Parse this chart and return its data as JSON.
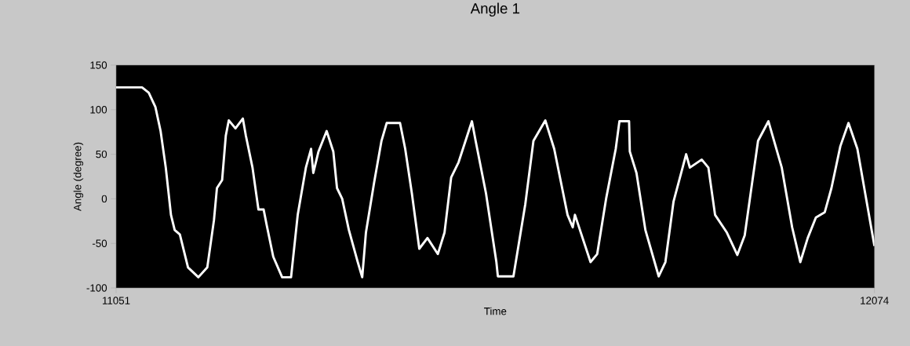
{
  "chart_data": {
    "type": "line",
    "title": "Angle 1",
    "xlabel": "Time",
    "ylabel": "Angle (degree)",
    "xlim": [
      11051,
      12074
    ],
    "xticks": [
      11051,
      12074
    ],
    "ylim": [
      -100,
      150
    ],
    "yticks": [
      -100,
      -50,
      0,
      50,
      100,
      150
    ],
    "grid": false,
    "marker": "none",
    "line_style": "solid",
    "series": [
      {
        "color": "#ffffff",
        "x": [
          11051,
          11086,
          11095,
          11104,
          11111,
          11118,
          11125,
          11130,
          11137,
          11148,
          11162,
          11174,
          11183,
          11187,
          11194,
          11199,
          11203,
          11212,
          11222,
          11226,
          11235,
          11243,
          11250,
          11254,
          11263,
          11275,
          11287,
          11296,
          11307,
          11314,
          11317,
          11324,
          11335,
          11344,
          11349,
          11356,
          11365,
          11377,
          11383,
          11388,
          11399,
          11409,
          11416,
          11434,
          11441,
          11450,
          11460,
          11471,
          11485,
          11494,
          11503,
          11513,
          11531,
          11536,
          11550,
          11564,
          11566,
          11587,
          11603,
          11614,
          11630,
          11642,
          11660,
          11667,
          11670,
          11691,
          11700,
          11712,
          11725,
          11730,
          11743,
          11744,
          11753,
          11765,
          11783,
          11792,
          11803,
          11820,
          11825,
          11841,
          11850,
          11859,
          11875,
          11889,
          11899,
          11917,
          11931,
          11949,
          11963,
          11974,
          11984,
          11995,
          12007,
          12016,
          12028,
          12039,
          12051,
          12074
        ],
        "values": [
          125,
          125,
          119,
          103,
          76,
          35,
          -18,
          -35,
          -40,
          -77,
          -88,
          -77,
          -24,
          12,
          21,
          71,
          88,
          79,
          90,
          71,
          35,
          -12,
          -12,
          -29,
          -65,
          -88,
          -88,
          -18,
          35,
          56,
          29,
          53,
          76,
          53,
          12,
          0,
          -35,
          -71,
          -88,
          -38,
          18,
          65,
          85,
          85,
          56,
          6,
          -56,
          -44,
          -62,
          -38,
          24,
          41,
          87,
          65,
          6,
          -71,
          -87,
          -87,
          -6,
          65,
          88,
          56,
          -18,
          -32,
          -18,
          -71,
          -62,
          0,
          56,
          87,
          87,
          53,
          29,
          -35,
          -87,
          -71,
          -3,
          50,
          35,
          44,
          35,
          -18,
          -38,
          -63,
          -41,
          65,
          87,
          35,
          -32,
          -71,
          -44,
          -21,
          -15,
          12,
          59,
          85,
          56,
          -53
        ]
      }
    ]
  }
}
